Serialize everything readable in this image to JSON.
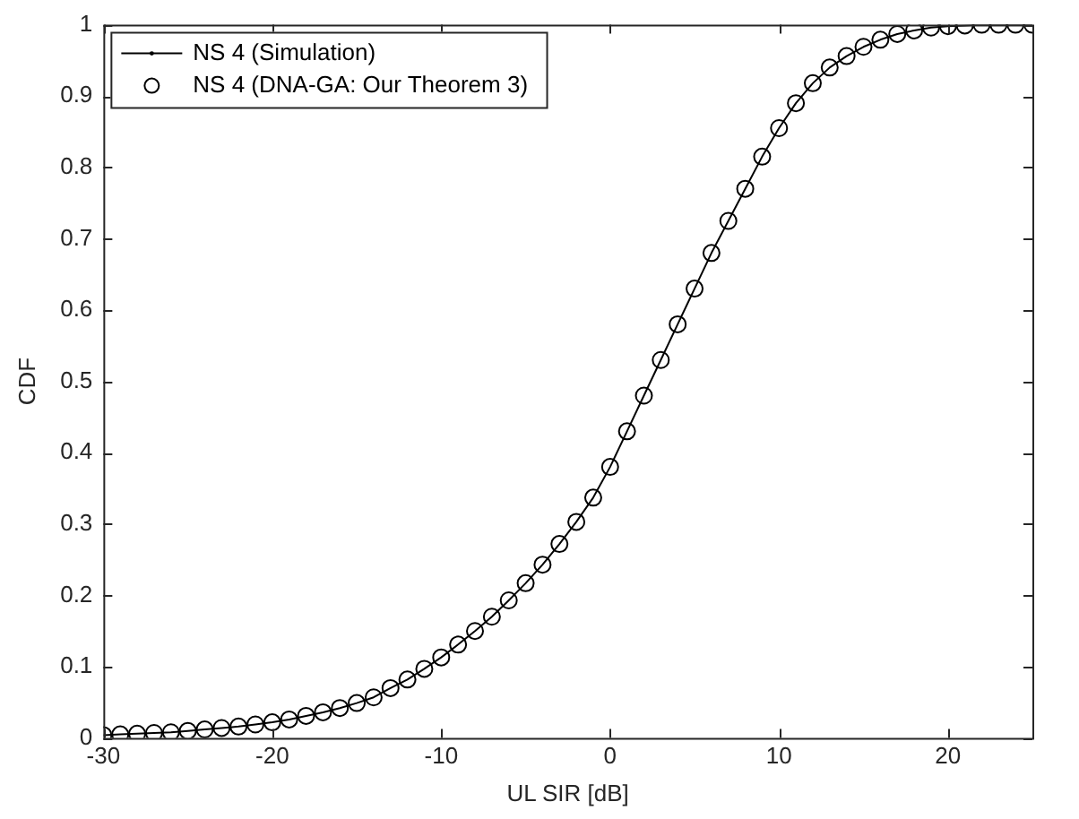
{
  "chart_data": {
    "type": "line",
    "xlabel": "UL SIR [dB]",
    "ylabel": "CDF",
    "x": [
      -30,
      -29,
      -28,
      -27,
      -26,
      -25,
      -24,
      -23,
      -22,
      -21,
      -20,
      -19,
      -18,
      -17,
      -16,
      -15,
      -14,
      -13,
      -12,
      -11,
      -10,
      -9,
      -8,
      -7,
      -6,
      -5,
      -4,
      -3,
      -2,
      -1,
      0,
      1,
      2,
      3,
      4,
      5,
      6,
      7,
      8,
      9,
      10,
      11,
      12,
      13,
      14,
      15,
      16,
      17,
      18,
      19,
      20,
      21,
      22,
      23,
      24,
      25
    ],
    "series": [
      {
        "name": "NS 4 (Simulation)",
        "marker": "none",
        "line_style": "solid",
        "color": "#000000",
        "values": [
          0.004,
          0.005,
          0.006,
          0.007,
          0.008,
          0.01,
          0.012,
          0.014,
          0.016,
          0.019,
          0.022,
          0.026,
          0.031,
          0.036,
          0.042,
          0.049,
          0.057,
          0.07,
          0.082,
          0.097,
          0.113,
          0.131,
          0.15,
          0.17,
          0.193,
          0.217,
          0.243,
          0.272,
          0.303,
          0.337,
          0.38,
          0.43,
          0.48,
          0.53,
          0.58,
          0.63,
          0.68,
          0.725,
          0.77,
          0.815,
          0.855,
          0.89,
          0.918,
          0.94,
          0.956,
          0.969,
          0.979,
          0.987,
          0.992,
          0.996,
          0.998,
          0.999,
          1,
          1,
          1,
          1
        ]
      },
      {
        "name": "NS 4 (DNA-GA: Our Theorem 3)",
        "type": "scatter",
        "marker": "circle",
        "color": "#000000",
        "values": [
          0.004,
          0.005,
          0.006,
          0.007,
          0.008,
          0.01,
          0.012,
          0.014,
          0.016,
          0.019,
          0.022,
          0.026,
          0.031,
          0.036,
          0.042,
          0.049,
          0.057,
          0.07,
          0.082,
          0.097,
          0.113,
          0.131,
          0.15,
          0.17,
          0.193,
          0.217,
          0.243,
          0.272,
          0.303,
          0.337,
          0.38,
          0.43,
          0.48,
          0.53,
          0.58,
          0.63,
          0.68,
          0.725,
          0.77,
          0.815,
          0.855,
          0.89,
          0.918,
          0.94,
          0.956,
          0.969,
          0.979,
          0.987,
          0.992,
          0.996,
          0.998,
          0.999,
          1,
          1,
          1,
          1
        ]
      }
    ],
    "xlim": [
      -30,
      25
    ],
    "xticks": [
      -30,
      -20,
      -10,
      0,
      10,
      20
    ],
    "ylim": [
      0,
      1
    ],
    "yticks": [
      0,
      0.1,
      0.2,
      0.3,
      0.4,
      0.5,
      0.6,
      0.7,
      0.8,
      0.9,
      1
    ],
    "grid": false,
    "legend": "top left"
  }
}
